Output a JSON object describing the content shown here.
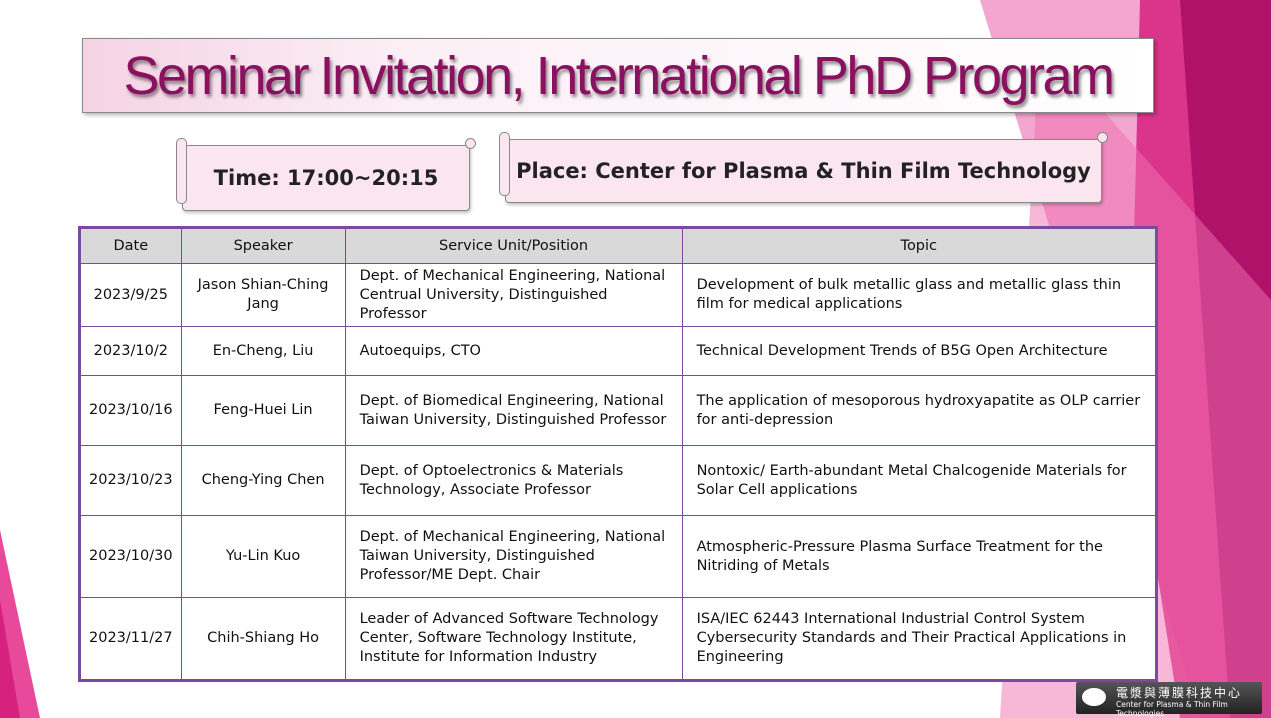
{
  "title": "Seminar Invitation, International PhD Program",
  "time": "Time: 17:00~20:15",
  "place": "Place: Center for Plasma & Thin Film Technology",
  "table": {
    "headers": [
      "Date",
      "Speaker",
      "Service Unit/Position",
      "Topic"
    ],
    "rows": [
      {
        "date": "2023/9/25",
        "speaker": "Jason Shian-Ching Jang",
        "unit": "Dept. of Mechanical Engineering, National Centrual University, Distinguished Professor",
        "topic": "Development of bulk metallic glass and metallic glass thin film for medical applications"
      },
      {
        "date": "2023/10/2",
        "speaker": "En-Cheng, Liu",
        "unit": "Autoequips, CTO",
        "topic": "Technical Development Trends of B5G Open Architecture"
      },
      {
        "date": "2023/10/16",
        "speaker": "Feng-Huei Lin",
        "unit": "Dept. of Biomedical Engineering, National Taiwan University, Distinguished Professor",
        "topic": "The application of mesoporous  hydroxyapatite as OLP carrier for anti-depression"
      },
      {
        "date": "2023/10/23",
        "speaker": "Cheng-Ying Chen",
        "unit": "Dept. of Optoelectronics & Materials Technology, Associate Professor",
        "topic": "Nontoxic/ Earth-abundant Metal Chalcogenide Materials for Solar Cell applications"
      },
      {
        "date": "2023/10/30",
        "speaker": "Yu-Lin Kuo",
        "unit": "Dept. of Mechanical Engineering, National Taiwan University, Distinguished Professor/ME Dept. Chair",
        "topic": "Atmospheric-Pressure Plasma Surface Treatment for the Nitriding of Metals"
      },
      {
        "date": "2023/11/27",
        "speaker": "Chih-Shiang Ho",
        "unit": "Leader of Advanced Software Technology Center, Software Technology Institute, Institute for Information Industry",
        "topic": "ISA/IEC 62443 International Industrial Control System Cybersecurity Standards and Their Practical Applications in Engineering"
      }
    ]
  },
  "logo": {
    "chinese": "電漿與薄膜科技中心",
    "english": "Center for Plasma & Thin Film Technologies"
  },
  "colors": {
    "title": "#8a1060",
    "border": "#7a4aa0",
    "accent": "#d6217f"
  }
}
